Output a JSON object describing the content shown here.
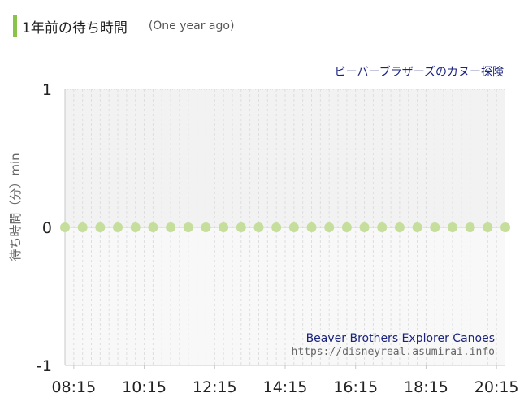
{
  "page": {
    "title": "1年前の待ち時間",
    "subtitle": "(One year ago)"
  },
  "chart_data": {
    "type": "line",
    "attraction_ja": "ビーバーブラザーズのカヌー探険",
    "attraction_en": "Beaver Brothers Explorer Canoes",
    "source": "https://disneyreal.asumirai.info",
    "ylabel": "待ち時間（分）min",
    "ylim": [
      -1,
      1
    ],
    "yticks": [
      1,
      0,
      -1
    ],
    "xtick_labels": [
      "08:15",
      "10:15",
      "12:15",
      "14:15",
      "16:15",
      "18:15",
      "20:15"
    ],
    "x": [
      "08:00",
      "08:30",
      "09:00",
      "09:30",
      "10:00",
      "10:30",
      "11:00",
      "11:30",
      "12:00",
      "12:30",
      "13:00",
      "13:30",
      "14:00",
      "14:30",
      "15:00",
      "15:30",
      "16:00",
      "16:30",
      "17:00",
      "17:30",
      "18:00",
      "18:30",
      "19:00",
      "19:30",
      "20:00",
      "20:30"
    ],
    "series": [
      {
        "values": [
          0,
          0,
          0,
          0,
          0,
          0,
          0,
          0,
          0,
          0,
          0,
          0,
          0,
          0,
          0,
          0,
          0,
          0,
          0,
          0,
          0,
          0,
          0,
          0,
          0,
          0
        ]
      }
    ],
    "colors": {
      "marker": "#c5de9c",
      "upper_band": "#f2f2f2",
      "lower_band": "#f8f8f8",
      "zero_line": "#cfcfcf"
    },
    "grid": true
  }
}
